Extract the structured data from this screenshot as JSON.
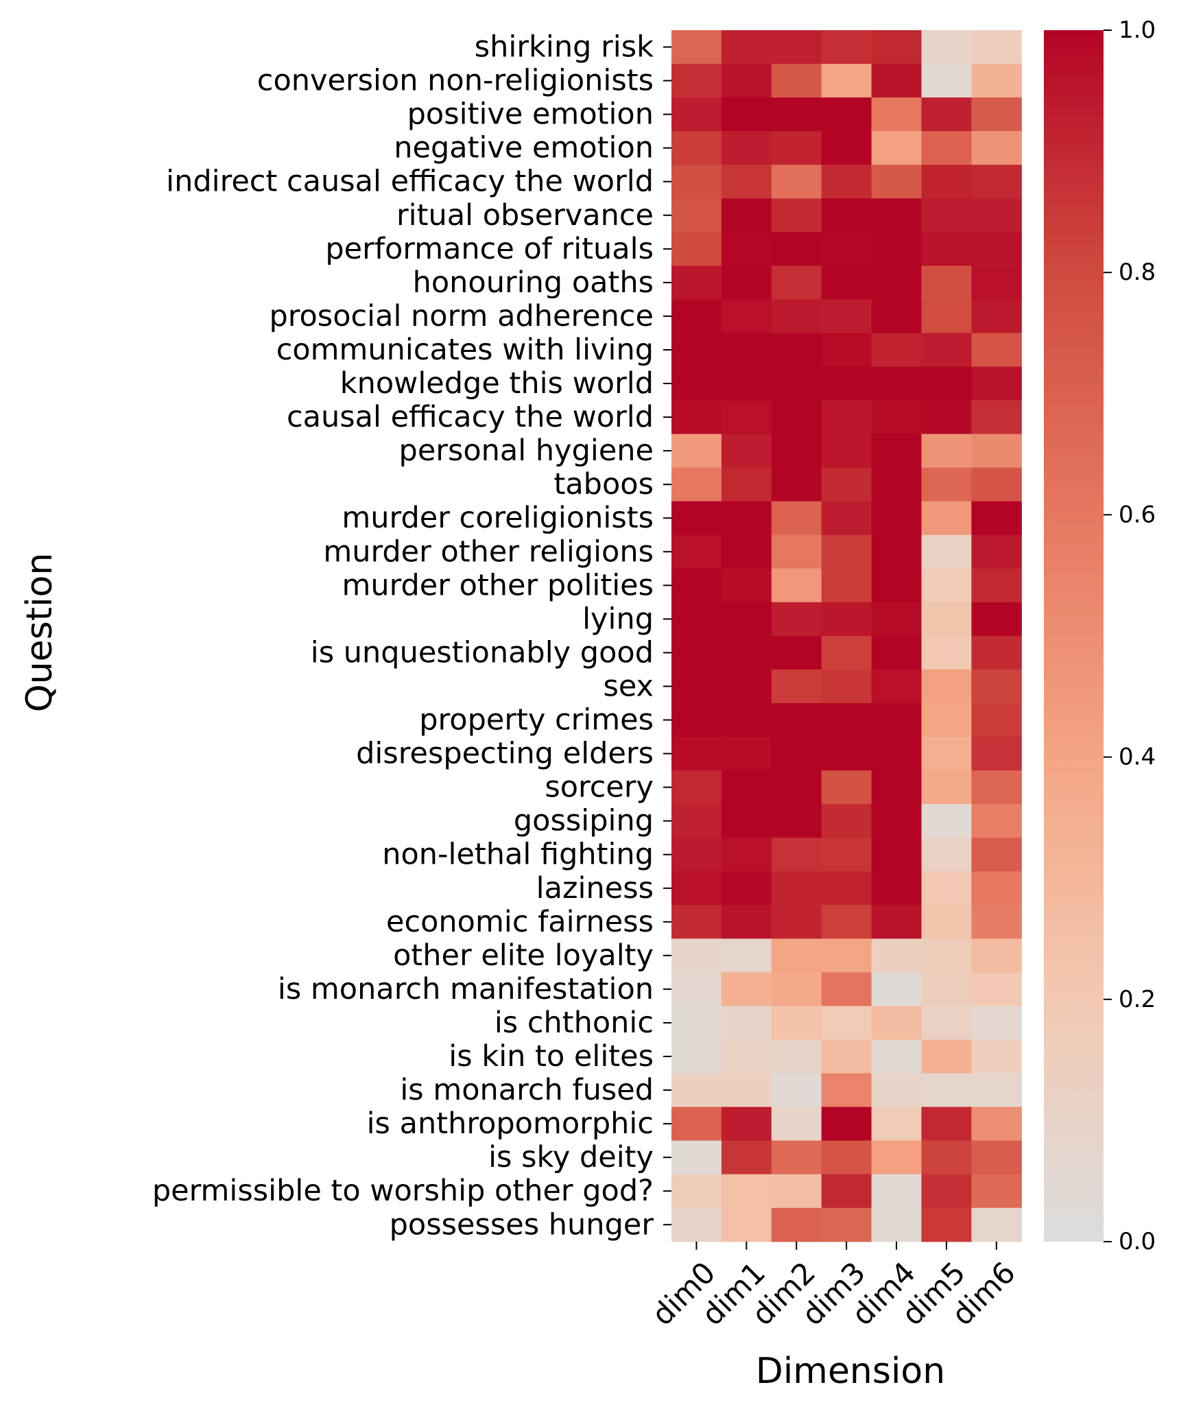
{
  "chart_data": {
    "type": "heatmap",
    "title": "",
    "xlabel": "Dimension",
    "ylabel": "Question",
    "columns": [
      "dim0",
      "dim1",
      "dim2",
      "dim3",
      "dim4",
      "dim5",
      "dim6"
    ],
    "rows": [
      "shirking risk",
      "conversion non-religionists",
      "positive emotion",
      "negative emotion",
      "indirect causal efficacy the world",
      "ritual observance",
      "performance of rituals",
      "honouring oaths",
      "prosocial norm adherence",
      "communicates with living",
      "knowledge this world",
      "causal efficacy the world",
      "personal hygiene",
      "taboos",
      "murder coreligionists",
      "murder other religions",
      "murder other polities",
      "lying",
      "is unquestionably good",
      "sex",
      "property crimes",
      "disrespecting elders",
      "sorcery",
      "gossiping",
      "non-lethal fighting",
      "laziness",
      "economic fairness",
      "other elite loyalty",
      "is monarch manifestation",
      "is chthonic",
      "is kin to elites",
      "is monarch fused",
      "is anthropomorphic",
      "is sky deity",
      "permissible to worship other god?",
      "possesses hunger"
    ],
    "values": [
      [
        0.68,
        0.92,
        0.92,
        0.88,
        0.9,
        0.1,
        0.15
      ],
      [
        0.88,
        0.96,
        0.74,
        0.4,
        0.96,
        0.05,
        0.33
      ],
      [
        0.93,
        1.0,
        1.0,
        1.0,
        0.6,
        0.92,
        0.73
      ],
      [
        0.84,
        0.93,
        0.91,
        1.0,
        0.42,
        0.7,
        0.48
      ],
      [
        0.78,
        0.86,
        0.64,
        0.89,
        0.74,
        0.91,
        0.9
      ],
      [
        0.76,
        1.0,
        0.89,
        1.0,
        1.0,
        0.93,
        0.93
      ],
      [
        0.8,
        0.99,
        1.0,
        0.99,
        1.0,
        0.96,
        0.96
      ],
      [
        0.95,
        1.0,
        0.88,
        1.0,
        1.0,
        0.78,
        0.97
      ],
      [
        1.0,
        0.97,
        0.94,
        0.93,
        1.0,
        0.79,
        0.94
      ],
      [
        1.0,
        1.0,
        1.0,
        0.98,
        0.91,
        0.93,
        0.76
      ],
      [
        1.0,
        1.0,
        1.0,
        1.0,
        1.0,
        1.0,
        0.96
      ],
      [
        0.98,
        0.97,
        1.0,
        0.95,
        0.98,
        0.99,
        0.88
      ],
      [
        0.45,
        0.93,
        1.0,
        0.95,
        1.0,
        0.48,
        0.52
      ],
      [
        0.6,
        0.9,
        1.0,
        0.89,
        1.0,
        0.68,
        0.76
      ],
      [
        1.0,
        1.0,
        0.7,
        0.93,
        1.0,
        0.46,
        1.0
      ],
      [
        0.97,
        1.0,
        0.6,
        0.84,
        1.0,
        0.12,
        0.94
      ],
      [
        1.0,
        0.98,
        0.46,
        0.84,
        1.0,
        0.18,
        0.9
      ],
      [
        1.0,
        1.0,
        0.93,
        0.95,
        0.98,
        0.22,
        1.0
      ],
      [
        1.0,
        1.0,
        1.0,
        0.83,
        1.0,
        0.2,
        0.89
      ],
      [
        1.0,
        1.0,
        0.84,
        0.86,
        0.97,
        0.42,
        0.82
      ],
      [
        1.0,
        1.0,
        1.0,
        1.0,
        1.0,
        0.4,
        0.84
      ],
      [
        0.98,
        0.98,
        1.0,
        1.0,
        1.0,
        0.35,
        0.87
      ],
      [
        0.9,
        1.0,
        1.0,
        0.77,
        1.0,
        0.38,
        0.68
      ],
      [
        0.92,
        1.0,
        1.0,
        0.89,
        1.0,
        0.04,
        0.57
      ],
      [
        0.94,
        0.97,
        0.87,
        0.86,
        1.0,
        0.12,
        0.72
      ],
      [
        0.97,
        0.99,
        0.91,
        0.91,
        1.0,
        0.2,
        0.6
      ],
      [
        0.89,
        0.96,
        0.91,
        0.83,
        0.96,
        0.22,
        0.58
      ],
      [
        0.1,
        0.08,
        0.4,
        0.4,
        0.13,
        0.16,
        0.28
      ],
      [
        0.06,
        0.34,
        0.38,
        0.62,
        0.03,
        0.15,
        0.2
      ],
      [
        0.04,
        0.1,
        0.24,
        0.18,
        0.28,
        0.12,
        0.06
      ],
      [
        0.04,
        0.12,
        0.1,
        0.28,
        0.04,
        0.35,
        0.15
      ],
      [
        0.14,
        0.14,
        0.04,
        0.55,
        0.1,
        0.08,
        0.08
      ],
      [
        0.7,
        0.93,
        0.1,
        1.0,
        0.18,
        0.9,
        0.5
      ],
      [
        0.04,
        0.86,
        0.66,
        0.76,
        0.42,
        0.82,
        0.72
      ],
      [
        0.17,
        0.25,
        0.26,
        0.9,
        0.05,
        0.88,
        0.66
      ],
      [
        0.1,
        0.25,
        0.7,
        0.68,
        0.05,
        0.85,
        0.08
      ]
    ],
    "colorbar": {
      "min": 0.0,
      "max": 1.0,
      "ticks": [
        "0.0",
        "0.2",
        "0.4",
        "0.6",
        "0.8",
        "1.0"
      ]
    },
    "colormap": [
      "#dddddd",
      "#f2c9b2",
      "#f4a584",
      "#e67860",
      "#cf4b3e",
      "#b40426"
    ],
    "grid": false,
    "legend": "colorbar-right"
  }
}
